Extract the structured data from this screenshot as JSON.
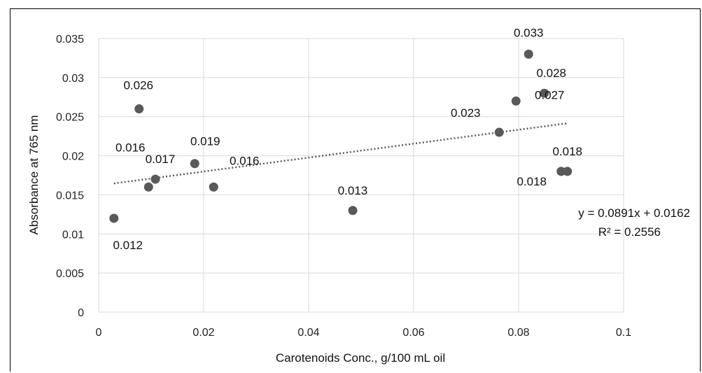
{
  "chart_data": {
    "type": "scatter",
    "title": "",
    "xlabel": "Carotenoids Conc., g/100 mL oil",
    "ylabel": "Absorbance at 765 nm",
    "xlim": [
      0,
      0.1
    ],
    "ylim": [
      0,
      0.035
    ],
    "x_ticks": [
      "0",
      "0.02",
      "0.04",
      "0.06",
      "0.08",
      "0.1"
    ],
    "y_ticks": [
      "0",
      "0.005",
      "0.01",
      "0.015",
      "0.02",
      "0.025",
      "0.03",
      "0.035"
    ],
    "grid": true,
    "marker_color": "#595959",
    "trendline_color": "#595959",
    "points": [
      {
        "x": 0.0029,
        "y": 0.012,
        "label": "0.012"
      },
      {
        "x": 0.0077,
        "y": 0.026,
        "label": "0.026"
      },
      {
        "x": 0.0095,
        "y": 0.016,
        "label": "0.016"
      },
      {
        "x": 0.0108,
        "y": 0.017,
        "label": "0.017"
      },
      {
        "x": 0.0183,
        "y": 0.019,
        "label": "0.019"
      },
      {
        "x": 0.0219,
        "y": 0.016,
        "label": "0.016"
      },
      {
        "x": 0.0484,
        "y": 0.013,
        "label": "0.013"
      },
      {
        "x": 0.0763,
        "y": 0.023,
        "label": "0.023"
      },
      {
        "x": 0.0795,
        "y": 0.027,
        "label": "0.027"
      },
      {
        "x": 0.0819,
        "y": 0.033,
        "label": "0.033"
      },
      {
        "x": 0.0849,
        "y": 0.028,
        "label": "0.028"
      },
      {
        "x": 0.0881,
        "y": 0.018,
        "label": "0.018"
      },
      {
        "x": 0.0893,
        "y": 0.018,
        "label": "0.018"
      }
    ],
    "trendline": {
      "type": "linear",
      "slope": 0.0891,
      "intercept": 0.0162,
      "x_range": [
        0.0029,
        0.0893
      ],
      "equation": "y = 0.0891x + 0.0162",
      "r_squared": "R² = 0.2556"
    }
  }
}
